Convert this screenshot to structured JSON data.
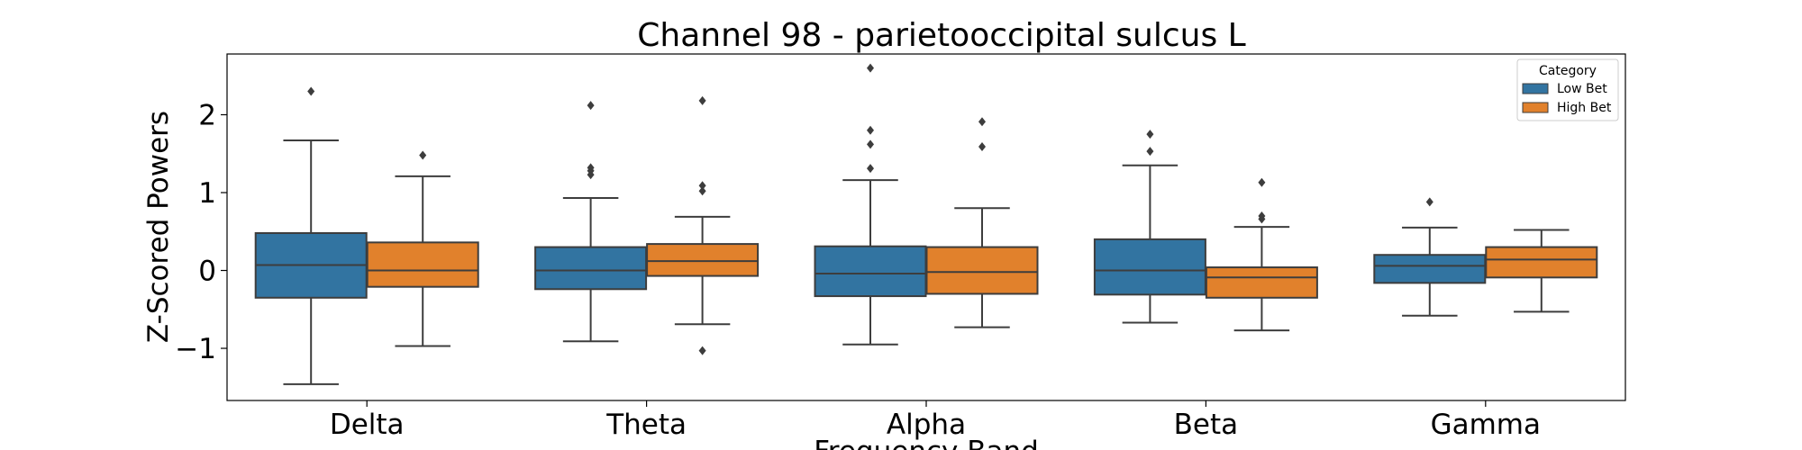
{
  "chart_data": {
    "type": "box",
    "title": "Channel 98 - parietooccipital sulcus L",
    "xlabel": "Frequency Band",
    "ylabel": "Z-Scored Powers",
    "categories": [
      "Delta",
      "Theta",
      "Alpha",
      "Beta",
      "Gamma"
    ],
    "ylim": [
      -1.67,
      2.78
    ],
    "yticks": [
      -1,
      0,
      1,
      2
    ],
    "ytick_labels": [
      "−1",
      "0",
      "1",
      "2"
    ],
    "grid": false,
    "legend": {
      "title": "Category",
      "position": "top-right"
    },
    "series": [
      {
        "name": "Low Bet",
        "color": "#3274a1",
        "boxes": [
          {
            "whislo": -1.46,
            "q1": -0.35,
            "med": 0.07,
            "q3": 0.48,
            "whishi": 1.67,
            "fliers": [
              2.3
            ]
          },
          {
            "whislo": -0.91,
            "q1": -0.24,
            "med": 0.0,
            "q3": 0.3,
            "whishi": 0.93,
            "fliers": [
              1.23,
              1.28,
              1.32,
              2.12
            ]
          },
          {
            "whislo": -0.95,
            "q1": -0.33,
            "med": -0.04,
            "q3": 0.31,
            "whishi": 1.16,
            "fliers": [
              1.31,
              1.62,
              1.8,
              2.6
            ]
          },
          {
            "whislo": -0.67,
            "q1": -0.31,
            "med": 0.0,
            "q3": 0.4,
            "whishi": 1.35,
            "fliers": [
              1.53,
              1.75
            ]
          },
          {
            "whislo": -0.58,
            "q1": -0.16,
            "med": 0.06,
            "q3": 0.2,
            "whishi": 0.55,
            "fliers": [
              0.88
            ]
          }
        ]
      },
      {
        "name": "High Bet",
        "color": "#e1812c",
        "boxes": [
          {
            "whislo": -0.97,
            "q1": -0.21,
            "med": 0.0,
            "q3": 0.36,
            "whishi": 1.21,
            "fliers": [
              1.48
            ]
          },
          {
            "whislo": -0.69,
            "q1": -0.07,
            "med": 0.12,
            "q3": 0.34,
            "whishi": 0.69,
            "fliers": [
              -1.03,
              1.02,
              1.09,
              2.18
            ]
          },
          {
            "whislo": -0.73,
            "q1": -0.3,
            "med": -0.02,
            "q3": 0.3,
            "whishi": 0.8,
            "fliers": [
              1.59,
              1.91
            ]
          },
          {
            "whislo": -0.77,
            "q1": -0.35,
            "med": -0.09,
            "q3": 0.04,
            "whishi": 0.56,
            "fliers": [
              0.66,
              0.7,
              1.13
            ]
          },
          {
            "whislo": -0.53,
            "q1": -0.09,
            "med": 0.14,
            "q3": 0.3,
            "whishi": 0.52,
            "fliers": []
          }
        ]
      }
    ]
  }
}
